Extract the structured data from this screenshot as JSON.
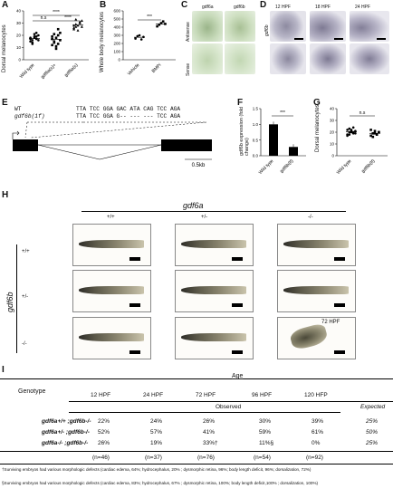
{
  "panels": {
    "A": {
      "letter": "A",
      "ylabel": "Dorsal melanocytes",
      "yticks": [
        "0",
        "10",
        "20",
        "30",
        "40"
      ],
      "groups": [
        "Wild type",
        "gdf6a(s)+",
        "gdf6a(s)"
      ],
      "sig": [
        "n.s",
        "****",
        "****"
      ]
    },
    "B": {
      "letter": "B",
      "ylabel": "Whole body melanocytes",
      "yticks": [
        "0",
        "100",
        "200",
        "300",
        "400",
        "500",
        "600"
      ],
      "groups": [
        "Vehicle",
        "BMPi"
      ],
      "sig": "***"
    },
    "C": {
      "letter": "C",
      "cols": [
        "gdf6a",
        "gdf6b"
      ],
      "rows": [
        "Antisense",
        "Sense"
      ]
    },
    "D": {
      "letter": "D",
      "times": [
        "12 HPF",
        "18 HPF",
        "24 HPF"
      ],
      "rowlabel": "gdf6b"
    },
    "E": {
      "letter": "E",
      "wt_label": "WT",
      "wt_seq": "TTA TCC GGA GAC ATA CAG TCC AGA",
      "mut_label": "gdf6b(1f)",
      "mut_seq": "TTA TCC GGA G-- --- --- TCC AGA",
      "scale": "0.5kb"
    },
    "F": {
      "letter": "F",
      "ylabel": "gdf6b expression (fold change)",
      "yticks": [
        "0.0",
        "0.5",
        "1.0",
        "1.5"
      ],
      "groups": [
        "Wild type",
        "gdf6b(lf)"
      ],
      "sig": "***"
    },
    "G": {
      "letter": "G",
      "ylabel": "Dorsal melanocytes",
      "yticks": [
        "0",
        "10",
        "20",
        "30",
        "40"
      ],
      "groups": [
        "Wild type",
        "gdf6b(lf)"
      ],
      "sig": "n.s"
    },
    "H": {
      "letter": "H",
      "title": "gdf6a",
      "side": "gdf6b",
      "cols": [
        "+/+",
        "+/-",
        "-/-"
      ],
      "rows": [
        "+/+",
        "+/-",
        "-/-"
      ],
      "stage": "72 HPF"
    },
    "I": {
      "letter": "I",
      "age_label": "Age",
      "genotype_label": "Genotype",
      "observed_label": "Observed",
      "expected_label": "Expected",
      "time_cols": [
        "12 HPF",
        "24 HPF",
        "72 HPF",
        "96 HPF",
        "120 HFP"
      ],
      "rows": [
        {
          "genotype": "gdf6a+/+ ;gdf6b-/-",
          "values": [
            "22%",
            "24%",
            "26%",
            "30%",
            "39%"
          ],
          "expected": "25%"
        },
        {
          "genotype": "gdf6a+/- ;gdf6b-/-",
          "values": [
            "52%",
            "57%",
            "41%",
            "59%",
            "61%"
          ],
          "expected": "50%"
        },
        {
          "genotype": "gdf6a-/- ;gdf6b-/-",
          "values": [
            "26%",
            "19%",
            "33%†",
            "11%§",
            "0%"
          ],
          "expected": "25%"
        }
      ],
      "counts": [
        "(n=46)",
        "(n=37)",
        "(n=76)",
        "(n=54)",
        "(n=92)"
      ],
      "footnote1": "†Surviving embryos had various morphologic defects (cardiac edema, 64%; hydrocephalus, 20% ; dysmorphic retina, 96%; body length deficit, 96%; dorsalization, 72%)",
      "footnote2": "§Surviving embryos had various morphologic defects (cardiac edema, 83%; hydrocephalus, 67% ; dysmorphic retina, 100%; body length deficit,100% ; dorsalization, 100%)"
    }
  },
  "chart_data": [
    {
      "type": "scatter",
      "panel": "A",
      "ylabel": "Dorsal melanocytes",
      "ylim": [
        0,
        40
      ],
      "categories": [
        "Wild type",
        "gdf6a(s)+",
        "gdf6a(s)"
      ],
      "series": [
        {
          "name": "Wild type",
          "values": [
            15,
            16,
            18,
            19,
            20,
            17,
            14,
            21,
            22,
            16,
            18,
            13,
            19,
            17
          ]
        },
        {
          "name": "gdf6a(s)+",
          "values": [
            12,
            15,
            18,
            20,
            22,
            17,
            14,
            9,
            25,
            16,
            19,
            21,
            11,
            13
          ]
        },
        {
          "name": "gdf6a(s)",
          "values": [
            25,
            27,
            28,
            30,
            32,
            26,
            29,
            24,
            31,
            27,
            28,
            33
          ]
        }
      ]
    },
    {
      "type": "scatter",
      "panel": "B",
      "ylabel": "Whole body melanocytes",
      "ylim": [
        0,
        600
      ],
      "categories": [
        "Vehicle",
        "BMPi"
      ],
      "series": [
        {
          "name": "Vehicle",
          "values": [
            260,
            290,
            300,
            250,
            280
          ]
        },
        {
          "name": "BMPi",
          "values": [
            410,
            430,
            450,
            470,
            440
          ]
        }
      ]
    },
    {
      "type": "bar",
      "panel": "F",
      "ylabel": "gdf6b expression (fold change)",
      "ylim": [
        0,
        1.5
      ],
      "categories": [
        "Wild type",
        "gdf6b(lf)"
      ],
      "values": [
        1.0,
        0.28
      ]
    },
    {
      "type": "scatter",
      "panel": "G",
      "ylabel": "Dorsal melanocytes",
      "ylim": [
        0,
        40
      ],
      "categories": [
        "Wild type",
        "gdf6b(lf)"
      ],
      "series": [
        {
          "name": "Wild type",
          "values": [
            18,
            20,
            22,
            19,
            21,
            17,
            23,
            20,
            24,
            19,
            22,
            18,
            21,
            20
          ]
        },
        {
          "name": "gdf6b(lf)",
          "values": [
            17,
            19,
            21,
            18,
            20,
            22,
            16,
            19,
            18,
            20
          ]
        }
      ]
    }
  ],
  "colors": {
    "thumb_green": "#cfe0c2",
    "thumb_gray": "#c7c7d1",
    "fish_dark": "#3b3a34"
  }
}
